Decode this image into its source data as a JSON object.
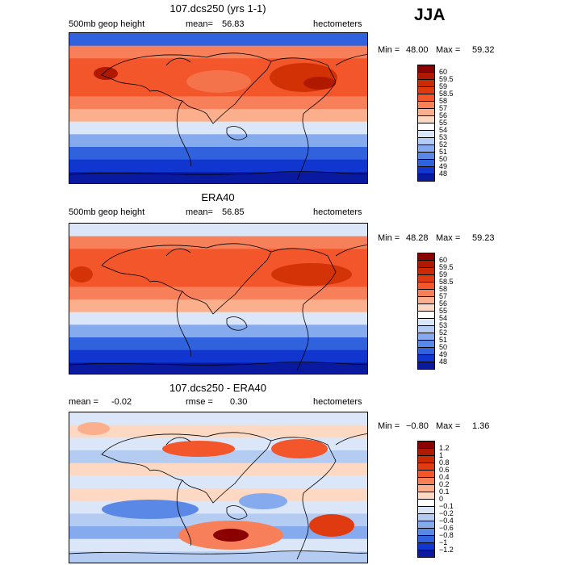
{
  "season": "JJA",
  "panels": [
    {
      "title": "107.dcs250 (yrs 1-1)",
      "left_label": "500mb geop height",
      "mean_label": "mean=",
      "mean_value": "56.83",
      "units": "hectometers",
      "min_label": "Min =",
      "min_value": "48.00",
      "max_label": "Max =",
      "max_value": "59.32",
      "colorbar": {
        "labels": [
          "60",
          "59.5",
          "59",
          "58.5",
          "58",
          "57",
          "56",
          "55",
          "54",
          "53",
          "52",
          "51",
          "50",
          "49",
          "48"
        ],
        "colors": [
          "#8b0000",
          "#b01800",
          "#cc2a00",
          "#e03a10",
          "#f2562a",
          "#f7805a",
          "#fbaf8c",
          "#fdd9c4",
          "#ffffff",
          "#dbe6f8",
          "#b4ccf2",
          "#86aaee",
          "#5a88e6",
          "#2f62dc",
          "#1036cf",
          "#0a1aa0"
        ]
      },
      "map_bands": [
        "#2f62dc",
        "#f7805a",
        "#f2562a",
        "#f2562a",
        "#f2562a",
        "#f7805a",
        "#fbaf8c",
        "#dbe6f8",
        "#86aaee",
        "#2f62dc",
        "#1036cf",
        "#0a1aa0"
      ]
    },
    {
      "title": "ERA40",
      "left_label": "500mb geop height",
      "mean_label": "mean=",
      "mean_value": "56.85",
      "units": "hectometers",
      "min_label": "Min =",
      "min_value": "48.28",
      "max_label": "Max =",
      "max_value": "59.23",
      "colorbar": {
        "labels": [
          "60",
          "59.5",
          "59",
          "58.5",
          "58",
          "57",
          "56",
          "55",
          "54",
          "53",
          "52",
          "51",
          "50",
          "49",
          "48"
        ],
        "colors": [
          "#8b0000",
          "#b01800",
          "#cc2a00",
          "#e03a10",
          "#f2562a",
          "#f7805a",
          "#fbaf8c",
          "#fdd9c4",
          "#ffffff",
          "#dbe6f8",
          "#b4ccf2",
          "#86aaee",
          "#5a88e6",
          "#2f62dc",
          "#1036cf",
          "#0a1aa0"
        ]
      },
      "map_bands": [
        "#dbe6f8",
        "#f7805a",
        "#f2562a",
        "#f2562a",
        "#f2562a",
        "#f7805a",
        "#fbaf8c",
        "#dbe6f8",
        "#86aaee",
        "#2f62dc",
        "#1036cf",
        "#0a1aa0"
      ]
    },
    {
      "title": "107.dcs250 - ERA40",
      "left_label": "mean =",
      "left_value": "-0.02",
      "mean_label": "rmse =",
      "mean_value": "0.30",
      "units": "hectometers",
      "min_label": "Min =",
      "min_value": "−0.80",
      "max_label": "Max =",
      "max_value": "1.36",
      "colorbar": {
        "labels": [
          "1.2",
          "1",
          "0.8",
          "0.6",
          "0.4",
          "0.2",
          "0.1",
          "0",
          "−0.1",
          "−0.2",
          "−0.4",
          "−0.6",
          "−0.8",
          "−1",
          "−1.2"
        ],
        "colors": [
          "#8b0000",
          "#b01800",
          "#cc2a00",
          "#e03a10",
          "#f2562a",
          "#f7805a",
          "#fbaf8c",
          "#fdd9c4",
          "#ffffff",
          "#dbe6f8",
          "#b4ccf2",
          "#86aaee",
          "#5a88e6",
          "#2f62dc",
          "#1036cf",
          "#0a1aa0"
        ]
      },
      "map_bands": [
        "#dbe6f8",
        "#fdd9c4",
        "#dbe6f8",
        "#b4ccf2",
        "#fdd9c4",
        "#dbe6f8",
        "#fdd9c4",
        "#dbe6f8",
        "#b4ccf2",
        "#86aaee",
        "#dbe6f8",
        "#b4ccf2"
      ]
    }
  ]
}
